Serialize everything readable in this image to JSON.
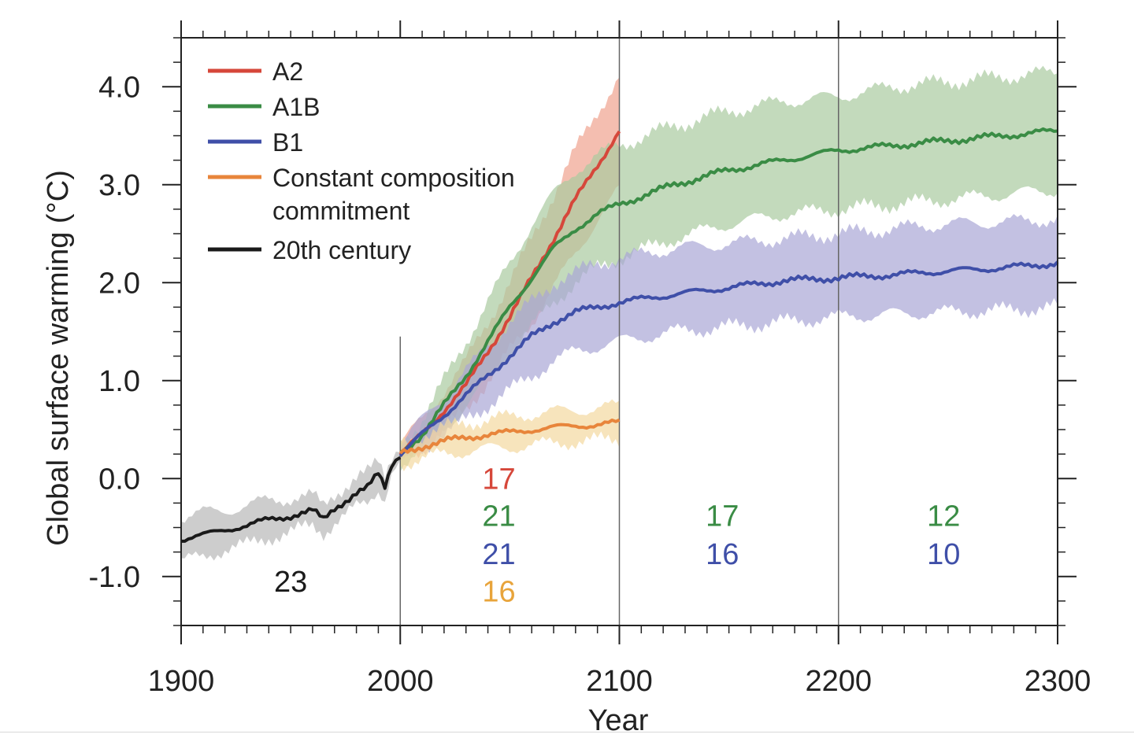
{
  "chart_data": {
    "type": "line",
    "xlabel": "Year",
    "ylabel": "Global surface warming (°C)",
    "xlim": [
      1900,
      2300
    ],
    "ylim": [
      -1.5,
      4.5
    ],
    "x_ticks": [
      1900,
      2000,
      2100,
      2200,
      2300
    ],
    "y_ticks": [
      {
        "value": 4.0,
        "label": "4.0"
      },
      {
        "value": 3.0,
        "label": "3.0"
      },
      {
        "value": 2.0,
        "label": "2.0"
      },
      {
        "value": 1.0,
        "label": "1.0"
      },
      {
        "value": 0.0,
        "label": "0.0"
      },
      {
        "value": -1.0,
        "label": "-1.0"
      }
    ],
    "period_dividers": [
      2000,
      2100,
      2200
    ],
    "legend_position": "top-left",
    "series": [
      {
        "name": "A2",
        "color": "#d6473a",
        "band_color": "#f0a38f",
        "x": [
          2000,
          2010,
          2020,
          2030,
          2040,
          2050,
          2060,
          2070,
          2080,
          2090,
          2100
        ],
        "y": [
          0.25,
          0.45,
          0.7,
          0.95,
          1.3,
          1.65,
          2.05,
          2.45,
          2.85,
          3.2,
          3.55
        ],
        "lower": [
          0.15,
          0.3,
          0.5,
          0.7,
          1.0,
          1.3,
          1.6,
          1.95,
          2.3,
          2.65,
          2.95
        ],
        "upper": [
          0.35,
          0.6,
          0.9,
          1.2,
          1.6,
          2.0,
          2.45,
          2.9,
          3.35,
          3.75,
          4.1
        ]
      },
      {
        "name": "A1B",
        "color": "#3a8c45",
        "band_color": "#a9cba0",
        "x": [
          2000,
          2010,
          2020,
          2030,
          2040,
          2050,
          2060,
          2070,
          2080,
          2090,
          2100,
          2125,
          2150,
          2175,
          2200,
          2225,
          2250,
          2275,
          2300
        ],
        "y": [
          0.25,
          0.45,
          0.75,
          1.05,
          1.4,
          1.75,
          2.05,
          2.35,
          2.55,
          2.7,
          2.8,
          3.0,
          3.15,
          3.25,
          3.35,
          3.4,
          3.45,
          3.5,
          3.55
        ],
        "lower": [
          0.15,
          0.3,
          0.5,
          0.75,
          1.0,
          1.3,
          1.55,
          1.8,
          2.0,
          2.15,
          2.25,
          2.45,
          2.6,
          2.7,
          2.75,
          2.8,
          2.85,
          2.9,
          2.95
        ],
        "upper": [
          0.35,
          0.6,
          1.0,
          1.4,
          1.8,
          2.2,
          2.6,
          2.9,
          3.15,
          3.3,
          3.4,
          3.6,
          3.75,
          3.85,
          3.9,
          4.0,
          4.05,
          4.1,
          4.15
        ]
      },
      {
        "name": "B1",
        "color": "#3f4fa8",
        "band_color": "#a9a6d6",
        "x": [
          2000,
          2010,
          2020,
          2030,
          2040,
          2050,
          2060,
          2070,
          2080,
          2090,
          2100,
          2125,
          2150,
          2175,
          2200,
          2225,
          2250,
          2275,
          2300
        ],
        "y": [
          0.25,
          0.45,
          0.65,
          0.85,
          1.05,
          1.25,
          1.45,
          1.6,
          1.7,
          1.75,
          1.8,
          1.88,
          1.95,
          2.02,
          2.05,
          2.08,
          2.12,
          2.15,
          2.2
        ],
        "lower": [
          0.15,
          0.3,
          0.45,
          0.6,
          0.75,
          0.9,
          1.05,
          1.2,
          1.3,
          1.35,
          1.4,
          1.5,
          1.55,
          1.6,
          1.65,
          1.68,
          1.7,
          1.72,
          1.75
        ],
        "upper": [
          0.35,
          0.6,
          0.85,
          1.1,
          1.35,
          1.6,
          1.8,
          2.0,
          2.1,
          2.2,
          2.25,
          2.35,
          2.4,
          2.45,
          2.5,
          2.55,
          2.6,
          2.62,
          2.65
        ]
      },
      {
        "name": "Constant composition commitment",
        "color": "#e8853b",
        "band_color": "#f3d9a0",
        "x": [
          2000,
          2010,
          2020,
          2030,
          2040,
          2050,
          2060,
          2070,
          2080,
          2090,
          2100
        ],
        "y": [
          0.25,
          0.33,
          0.38,
          0.42,
          0.45,
          0.47,
          0.5,
          0.52,
          0.54,
          0.55,
          0.57
        ],
        "lower": [
          0.15,
          0.2,
          0.25,
          0.28,
          0.3,
          0.32,
          0.34,
          0.36,
          0.38,
          0.39,
          0.4
        ],
        "upper": [
          0.35,
          0.45,
          0.52,
          0.57,
          0.6,
          0.63,
          0.66,
          0.68,
          0.7,
          0.72,
          0.74
        ]
      },
      {
        "name": "20th century",
        "color": "#1a1a1a",
        "band_color": "#b8b8b8",
        "x": [
          1900,
          1910,
          1920,
          1930,
          1940,
          1950,
          1960,
          1965,
          1970,
          1980,
          1985,
          1990,
          1993,
          1996,
          2000
        ],
        "y": [
          -0.62,
          -0.58,
          -0.52,
          -0.48,
          -0.42,
          -0.38,
          -0.33,
          -0.42,
          -0.3,
          -0.15,
          -0.1,
          0.05,
          -0.08,
          0.15,
          0.25
        ],
        "lower": [
          -0.85,
          -0.8,
          -0.72,
          -0.68,
          -0.6,
          -0.55,
          -0.48,
          -0.55,
          -0.45,
          -0.3,
          -0.25,
          -0.1,
          -0.2,
          0.05,
          0.15
        ],
        "upper": [
          -0.4,
          -0.35,
          -0.32,
          -0.28,
          -0.22,
          -0.2,
          -0.18,
          -0.28,
          -0.15,
          0.0,
          0.05,
          0.18,
          0.05,
          0.25,
          0.35
        ]
      }
    ],
    "annotations": [
      {
        "text": "23",
        "x": 1950,
        "y": -1.05,
        "color": "#1a1a1a"
      },
      {
        "text": "17",
        "x": 2045,
        "y": 0.0,
        "color": "#d6473a"
      },
      {
        "text": "21",
        "x": 2045,
        "y": -0.38,
        "color": "#3a8c45"
      },
      {
        "text": "21",
        "x": 2045,
        "y": -0.77,
        "color": "#3f4fa8"
      },
      {
        "text": "16",
        "x": 2045,
        "y": -1.15,
        "color": "#e8a43b"
      },
      {
        "text": "17",
        "x": 2147,
        "y": -0.38,
        "color": "#3a8c45"
      },
      {
        "text": "16",
        "x": 2147,
        "y": -0.77,
        "color": "#3f4fa8"
      },
      {
        "text": "12",
        "x": 2248,
        "y": -0.38,
        "color": "#3a8c45"
      },
      {
        "text": "10",
        "x": 2248,
        "y": -0.77,
        "color": "#3f4fa8"
      }
    ],
    "legend": [
      {
        "lines": [
          "A2"
        ],
        "color": "#d6473a"
      },
      {
        "lines": [
          "A1B"
        ],
        "color": "#3a8c45"
      },
      {
        "lines": [
          "B1"
        ],
        "color": "#3f4fa8"
      },
      {
        "lines": [
          "Constant composition",
          "commitment"
        ],
        "color": "#e8853b"
      },
      {
        "lines": [
          "20th century"
        ],
        "color": "#1a1a1a"
      }
    ]
  }
}
